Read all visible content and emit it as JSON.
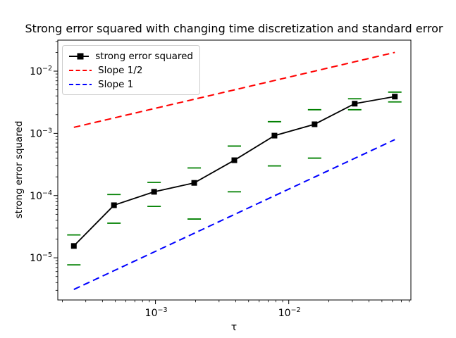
{
  "figure": {
    "background": "#ffffff"
  },
  "chart_data": {
    "type": "line",
    "title": "Strong error squared with changing time discretization and standard error",
    "xlabel": "τ",
    "ylabel": "strong error squared",
    "x_scale": "log",
    "y_scale": "log",
    "grid": false,
    "legend_position": "upper left",
    "xlim": [
      0.000185,
      0.0825
    ],
    "ylim": [
      2.1e-06,
      0.0315
    ],
    "x_major_tick_exponents": [
      -3,
      -2
    ],
    "y_major_tick_exponents": [
      -2,
      -3,
      -4,
      -5
    ],
    "x": [
      0.000244140625,
      0.00048828125,
      0.0009765625,
      0.001953125,
      0.00390625,
      0.0078125,
      0.015625,
      0.03125,
      0.0625
    ],
    "series": [
      {
        "name": "strong error squared",
        "color": "#000000",
        "line_style": "solid",
        "marker": "square",
        "values": [
          1.55e-05,
          7e-05,
          0.000115,
          0.00016,
          0.00037,
          0.00092,
          0.0014,
          0.003,
          0.0039
        ],
        "std_error": [
          7.8e-06,
          3.4e-05,
          4.8e-05,
          0.000118,
          0.000255,
          0.00062,
          0.001,
          0.0006,
          0.0007
        ],
        "error_color": "#008000"
      },
      {
        "name": "Slope 1/2",
        "color": "#ff0000",
        "line_style": "dashed",
        "coefficient": 0.08,
        "power": 0.5,
        "x_range": [
          0.000244140625,
          0.0625
        ]
      },
      {
        "name": "Slope 1",
        "color": "#0000ff",
        "line_style": "dashed",
        "coefficient": 0.0127,
        "power": 1,
        "x_range": [
          0.000244140625,
          0.0625
        ]
      }
    ]
  }
}
